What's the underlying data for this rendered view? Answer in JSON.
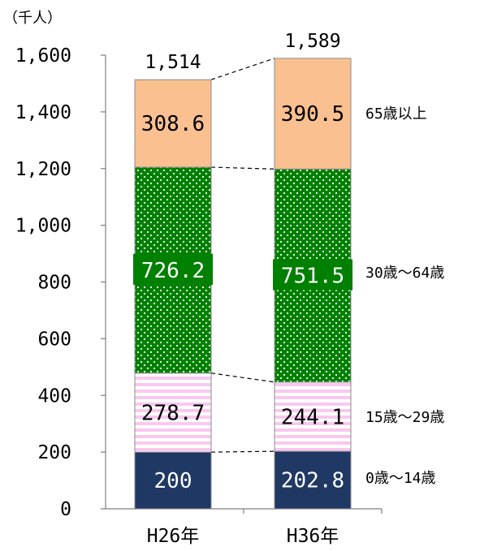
{
  "chart_data": {
    "type": "bar",
    "stacked": true,
    "unit_label": "（千人）",
    "categories": [
      "H26年",
      "H36年"
    ],
    "totals": [
      "1,514",
      "1,589"
    ],
    "ylim": [
      0,
      1600
    ],
    "yticks": [
      0,
      200,
      400,
      600,
      800,
      1000,
      1200,
      1400,
      1600
    ],
    "ytick_labels": [
      "0",
      "200",
      "400",
      "600",
      "800",
      "1,000",
      "1,200",
      "1,400",
      "1,600"
    ],
    "series": [
      {
        "name": "0歳～14歳",
        "values": [
          200,
          202.8
        ],
        "labels": [
          "200",
          "202.8"
        ],
        "color": "#1f3864",
        "label_color": "#ffffff"
      },
      {
        "name": "15歳～29歳",
        "values": [
          278.7,
          244.1
        ],
        "labels": [
          "278.7",
          "244.1"
        ],
        "color": "#f9c8ef",
        "label_color": "#000000"
      },
      {
        "name": "30歳～64歳",
        "values": [
          726.2,
          751.5
        ],
        "labels": [
          "726.2",
          "751.5"
        ],
        "color": "#008000",
        "label_color": "#ffffff"
      },
      {
        "name": "65歳以上",
        "values": [
          308.6,
          390.5
        ],
        "labels": [
          "308.6",
          "390.5"
        ],
        "color": "#fac090",
        "label_color": "#000000"
      }
    ],
    "legend_placement": "right"
  }
}
